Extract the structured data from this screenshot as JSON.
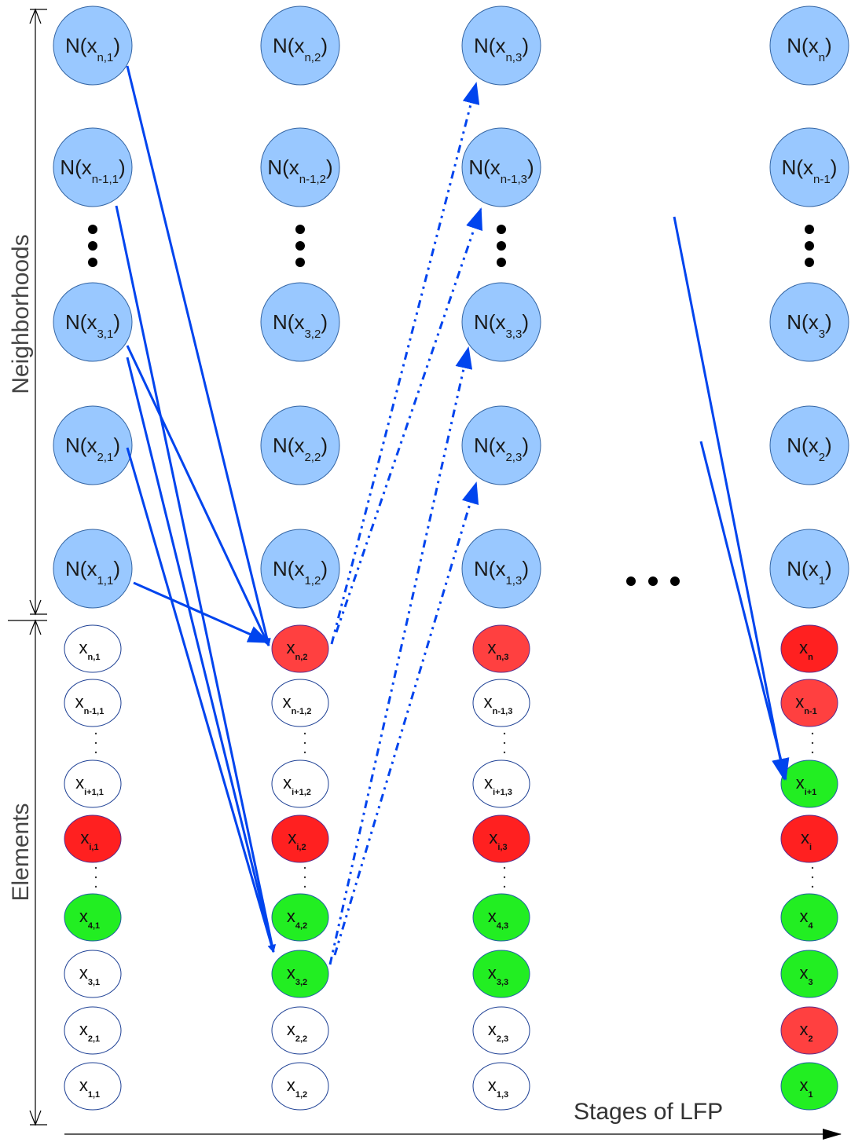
{
  "labels": {
    "neighborhoods": "Neighborhoods",
    "elements": "Elements",
    "stages": "Stages of LFP"
  },
  "columns": [
    {
      "neighborhoods": [
        {
          "main": "N(x",
          "sub": "n,1",
          "close": ")"
        },
        {
          "main": "N(x",
          "sub": "n-1,1",
          "close": ")"
        },
        {
          "main": "N(x",
          "sub": "3,1",
          "close": ")"
        },
        {
          "main": "N(x",
          "sub": "2,1",
          "close": ")"
        },
        {
          "main": "N(x",
          "sub": "1,1",
          "close": ")"
        }
      ],
      "elements": [
        {
          "main": "x",
          "sub": "n,1",
          "state": "white"
        },
        {
          "main": "x",
          "sub": "n-1,1",
          "state": "white"
        },
        {
          "main": "x",
          "sub": "i+1,1",
          "state": "white"
        },
        {
          "main": "x",
          "sub": "i,1",
          "state": "red"
        },
        {
          "main": "x",
          "sub": "4,1",
          "state": "green"
        },
        {
          "main": "x",
          "sub": "3,1",
          "state": "white"
        },
        {
          "main": "x",
          "sub": "2,1",
          "state": "white"
        },
        {
          "main": "x",
          "sub": "1,1",
          "state": "white"
        }
      ]
    },
    {
      "neighborhoods": [
        {
          "main": "N(x",
          "sub": "n,2",
          "close": ")"
        },
        {
          "main": "N(x",
          "sub": "n-1,2",
          "close": ")"
        },
        {
          "main": "N(x",
          "sub": "3,2",
          "close": ")"
        },
        {
          "main": "N(x",
          "sub": "2,2",
          "close": ")"
        },
        {
          "main": "N(x",
          "sub": "1,2",
          "close": ")"
        }
      ],
      "elements": [
        {
          "main": "x",
          "sub": "n,2",
          "state": "red-light"
        },
        {
          "main": "x",
          "sub": "n-1,2",
          "state": "white"
        },
        {
          "main": "x",
          "sub": "i+1,2",
          "state": "white"
        },
        {
          "main": "x",
          "sub": "i,2",
          "state": "red"
        },
        {
          "main": "x",
          "sub": "4,2",
          "state": "green"
        },
        {
          "main": "x",
          "sub": "3,2",
          "state": "green"
        },
        {
          "main": "x",
          "sub": "2,2",
          "state": "white"
        },
        {
          "main": "x",
          "sub": "1,2",
          "state": "white"
        }
      ]
    },
    {
      "neighborhoods": [
        {
          "main": "N(x",
          "sub": "n,3",
          "close": ")"
        },
        {
          "main": "N(x",
          "sub": "n-1,3",
          "close": ")"
        },
        {
          "main": "N(x",
          "sub": "3,3",
          "close": ")"
        },
        {
          "main": "N(x",
          "sub": "2,3",
          "close": ")"
        },
        {
          "main": "N(x",
          "sub": "1,3",
          "close": ")"
        }
      ],
      "elements": [
        {
          "main": "x",
          "sub": "n,3",
          "state": "red-light"
        },
        {
          "main": "x",
          "sub": "n-1,3",
          "state": "white"
        },
        {
          "main": "x",
          "sub": "i+1,3",
          "state": "white"
        },
        {
          "main": "x",
          "sub": "i,3",
          "state": "red"
        },
        {
          "main": "x",
          "sub": "4,3",
          "state": "green"
        },
        {
          "main": "x",
          "sub": "3,3",
          "state": "green"
        },
        {
          "main": "x",
          "sub": "2,3",
          "state": "white"
        },
        {
          "main": "x",
          "sub": "1,3",
          "state": "white"
        }
      ]
    },
    {
      "neighborhoods": [
        {
          "main": "N(x",
          "sub": "n",
          "close": ")"
        },
        {
          "main": "N(x",
          "sub": "n-1",
          "close": ")"
        },
        {
          "main": "N(x",
          "sub": "3",
          "close": ")"
        },
        {
          "main": "N(x",
          "sub": "2",
          "close": ")"
        },
        {
          "main": "N(x",
          "sub": "1",
          "close": ")"
        }
      ],
      "elements": [
        {
          "main": "x",
          "sub": "n",
          "state": "red"
        },
        {
          "main": "x",
          "sub": "n-1",
          "state": "red-light"
        },
        {
          "main": "x",
          "sub": "i+1",
          "state": "green"
        },
        {
          "main": "x",
          "sub": "i",
          "state": "red"
        },
        {
          "main": "x",
          "sub": "4",
          "state": "green"
        },
        {
          "main": "x",
          "sub": "3",
          "state": "green"
        },
        {
          "main": "x",
          "sub": "2",
          "state": "red-light"
        },
        {
          "main": "x",
          "sub": "1",
          "state": "green"
        }
      ]
    }
  ],
  "colors": {
    "neighborhood_fill": "#99c8ff",
    "red": "#ff2020",
    "green": "#22ee22",
    "white": "#ffffff",
    "arrow": "#0044ee"
  }
}
